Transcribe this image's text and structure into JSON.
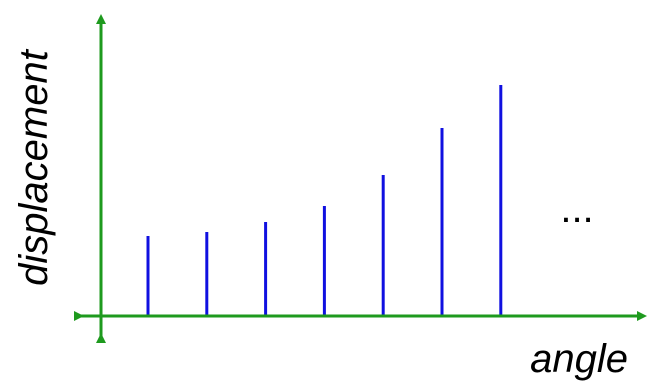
{
  "chart_data": {
    "type": "bar",
    "style": "stem",
    "title": "",
    "xlabel": "angle",
    "ylabel": "displacement",
    "values": [
      80,
      84,
      94,
      110,
      141,
      188,
      231
    ],
    "ylim": [
      0,
      240
    ],
    "continuation": "...",
    "grid": false,
    "legend": "none",
    "colors": {
      "bars": "#1010e0",
      "axes": "#1e9a1e",
      "text": "#000000"
    }
  }
}
